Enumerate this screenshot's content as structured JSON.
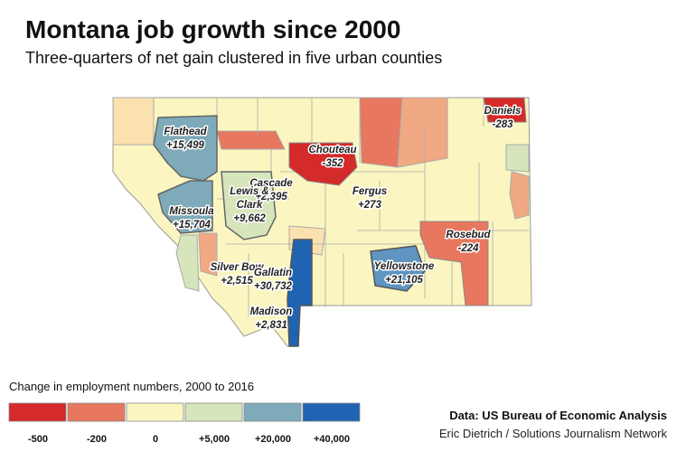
{
  "header": {
    "title": "Montana job growth since 2000",
    "subtitle": "Three-quarters of net gain clustered in five urban counties"
  },
  "counties": [
    {
      "lines": [
        "Flathead",
        "+15,499"
      ],
      "color": "#7eaab9"
    },
    {
      "lines": [
        "Chouteau",
        "-352"
      ],
      "color": "#d42a2a"
    },
    {
      "lines": [
        "Daniels",
        "-283"
      ],
      "color": "#d42a2a"
    },
    {
      "lines": [
        "Cascade",
        "+2,395"
      ],
      "color": "#fbf6c1"
    },
    {
      "lines": [
        "Lewis &",
        "Clark",
        "+9,662"
      ],
      "color": "#d6e5bb"
    },
    {
      "lines": [
        "Missoula",
        "+15,704"
      ],
      "color": "#7eaab9"
    },
    {
      "lines": [
        "Fergus",
        "+273"
      ],
      "color": "#fbf6c1"
    },
    {
      "lines": [
        "Rosebud",
        "-224"
      ],
      "color": "#e8775f"
    },
    {
      "lines": [
        "Silver Bow",
        "+2,515"
      ],
      "color": "#fbf6c1"
    },
    {
      "lines": [
        "Gallatin",
        "+30,732"
      ],
      "color": "#2063b3"
    },
    {
      "lines": [
        "Madison",
        "+2,831"
      ],
      "color": "#fbf6c1"
    },
    {
      "lines": [
        "Yellowstone",
        "+21,105"
      ],
      "color": "#5f95c0"
    }
  ],
  "legend": {
    "title": "Change in employment numbers, 2000 to 2016",
    "items": [
      {
        "label": "-500",
        "color": "#d42a2a"
      },
      {
        "label": "-200",
        "color": "#e8775f"
      },
      {
        "label": "0",
        "color": "#fbf6c1"
      },
      {
        "label": "+5,000",
        "color": "#d6e5bb"
      },
      {
        "label": "+20,000",
        "color": "#7eaab9"
      },
      {
        "label": "+40,000",
        "color": "#2063b3"
      }
    ]
  },
  "footer": {
    "source": "Data: US Bureau of Economic Analysis",
    "credit": "Eric Dietrich / Solutions Journalism Network"
  }
}
